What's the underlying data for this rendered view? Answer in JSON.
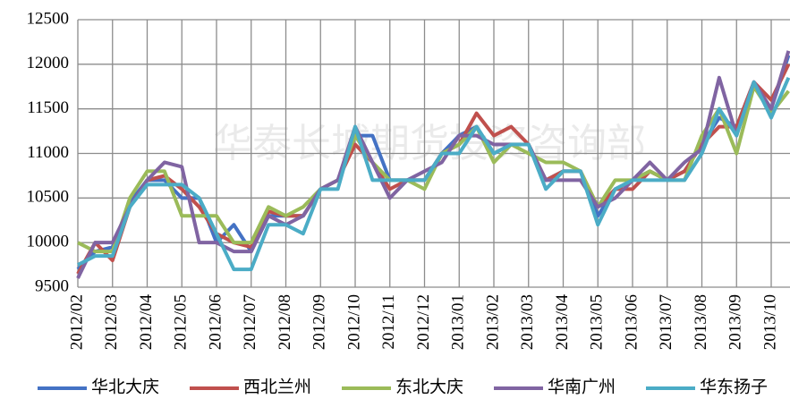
{
  "chart_data": {
    "type": "line",
    "watermark": "华泰长城期货投资咨询部",
    "categories": [
      "2012/02",
      null,
      "2012/03",
      null,
      "2012/04",
      null,
      "2012/05",
      null,
      "2012/06",
      null,
      "2012/07",
      null,
      "2012/08",
      null,
      "2012/09",
      null,
      "2012/10",
      null,
      "2012/11",
      null,
      "2012/12",
      null,
      "2013/01",
      null,
      "2013/02",
      null,
      "2013/03",
      null,
      "2013/04",
      null,
      "2013/05",
      null,
      "2013/06",
      null,
      "2013/07",
      null,
      "2013/08",
      null,
      "2013/09",
      null,
      "2013/10",
      null
    ],
    "series": [
      {
        "name": "华北大庆",
        "color": "#4472c4",
        "values": [
          9700,
          9900,
          9950,
          10450,
          10700,
          10700,
          10500,
          10500,
          10000,
          10200,
          9900,
          10300,
          10300,
          10300,
          10600,
          10700,
          11200,
          11200,
          10700,
          10700,
          10700,
          11000,
          11200,
          11300,
          11000,
          11100,
          11100,
          10700,
          10800,
          10800,
          10300,
          10600,
          10700,
          10800,
          10700,
          10800,
          11100,
          11400,
          11300,
          11800,
          11500,
          12100
        ]
      },
      {
        "name": "西北兰州",
        "color": "#c0504d",
        "values": [
          9650,
          10000,
          9800,
          10400,
          10700,
          10750,
          10600,
          10400,
          10100,
          10000,
          9950,
          10350,
          10300,
          10300,
          10600,
          10700,
          11100,
          10900,
          10600,
          10700,
          10700,
          11000,
          11100,
          11450,
          11200,
          11300,
          11100,
          10700,
          10800,
          10800,
          10400,
          10600,
          10600,
          10800,
          10700,
          10800,
          11100,
          11300,
          11300,
          11800,
          11600,
          12000
        ]
      },
      {
        "name": "东北大庆",
        "color": "#9bbb59",
        "values": [
          10000,
          9900,
          9900,
          10500,
          10800,
          10800,
          10300,
          10300,
          10300,
          10000,
          10000,
          10400,
          10300,
          10400,
          10600,
          10700,
          11200,
          10900,
          10700,
          10700,
          10600,
          11000,
          11100,
          11300,
          10900,
          11100,
          11000,
          10900,
          10900,
          10800,
          10400,
          10700,
          10700,
          10800,
          10700,
          10700,
          11200,
          11500,
          11000,
          11750,
          11450,
          11700
        ]
      },
      {
        "name": "华南广州",
        "color": "#8064a2",
        "values": [
          9600,
          10000,
          10000,
          10400,
          10700,
          10900,
          10850,
          10000,
          10000,
          9900,
          9900,
          10300,
          10200,
          10300,
          10600,
          10700,
          11300,
          10900,
          10500,
          10700,
          10800,
          10900,
          11200,
          11200,
          11100,
          11100,
          11100,
          10700,
          10700,
          10700,
          10400,
          10500,
          10700,
          10900,
          10700,
          10900,
          11050,
          11850,
          11200,
          11800,
          11500,
          12150
        ]
      },
      {
        "name": "华东扬子",
        "color": "#4bacc6",
        "values": [
          9750,
          9850,
          9850,
          10400,
          10650,
          10650,
          10650,
          10500,
          10100,
          9700,
          9700,
          10200,
          10200,
          10100,
          10600,
          10600,
          11300,
          10700,
          10700,
          10700,
          10700,
          11000,
          11000,
          11300,
          11000,
          11100,
          11100,
          10600,
          10800,
          10800,
          10200,
          10600,
          10700,
          10700,
          10700,
          10700,
          11000,
          11500,
          11200,
          11800,
          11400,
          11850
        ]
      }
    ],
    "ylim": [
      9500,
      12500
    ],
    "yticks": [
      9500,
      10000,
      10500,
      11000,
      11500,
      12000,
      12500
    ],
    "grid": true,
    "legend": "bottom"
  }
}
